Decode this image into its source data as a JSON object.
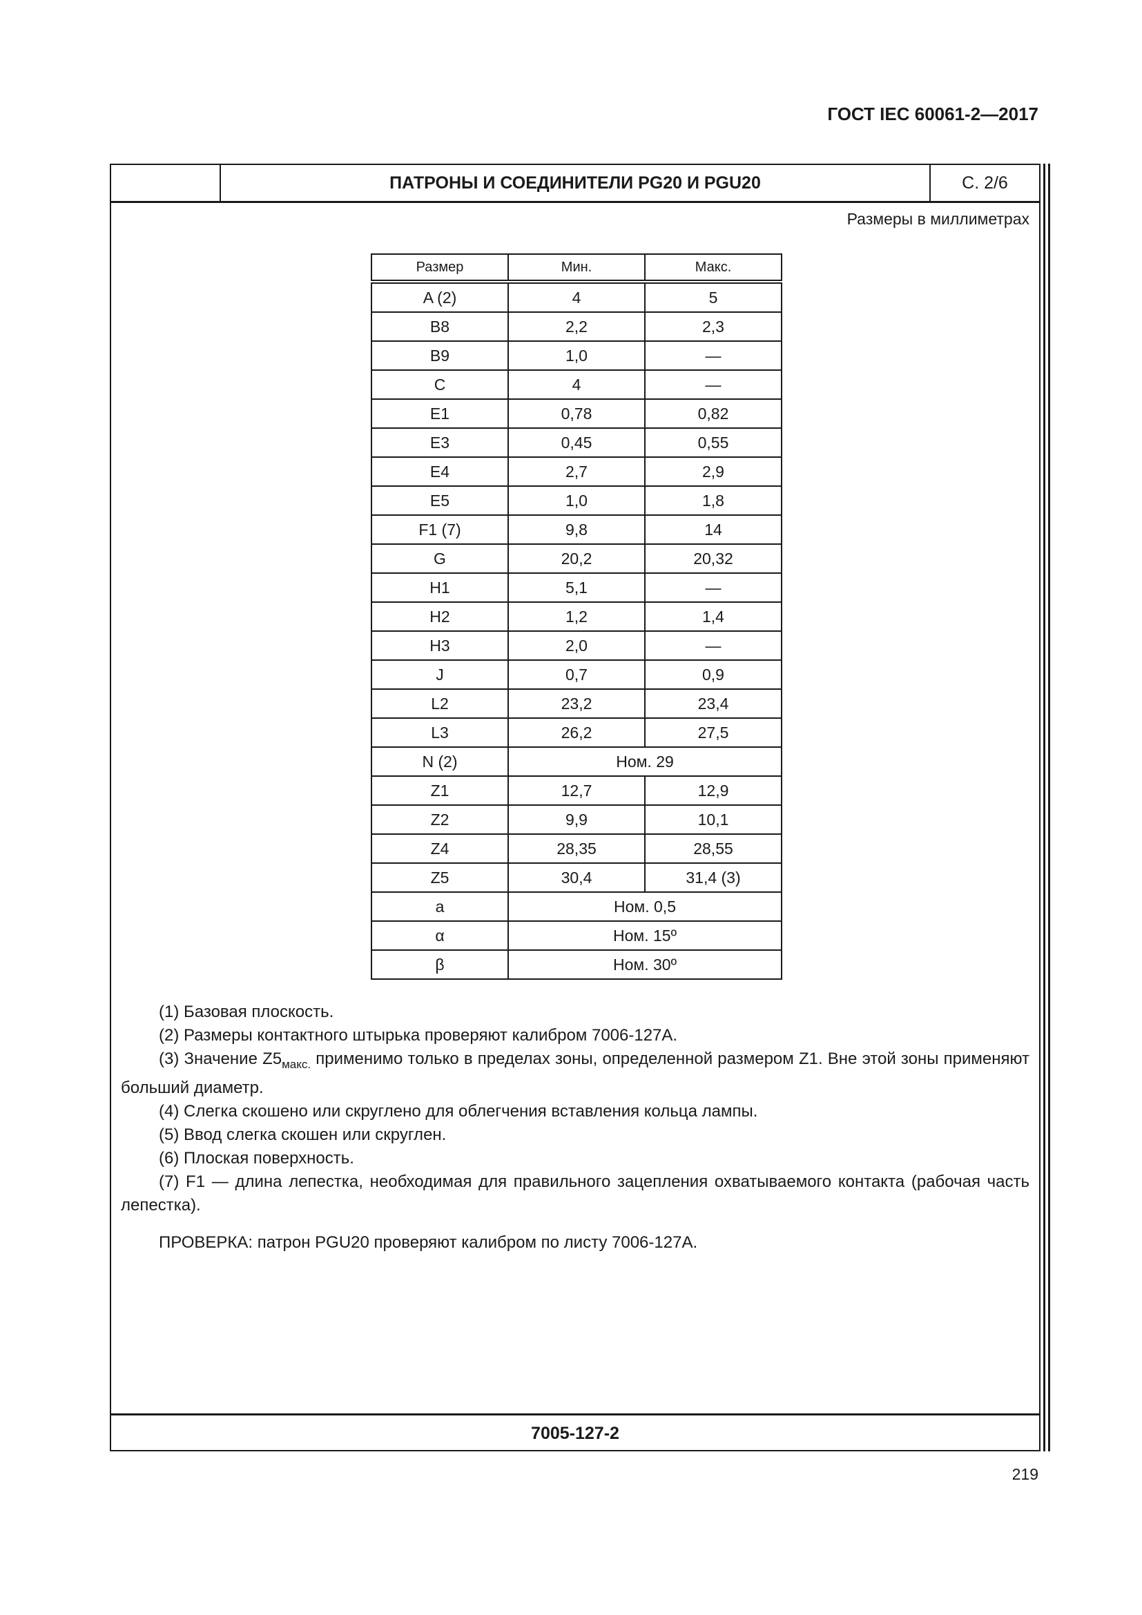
{
  "standard": "ГОСТ IEC 60061-2—2017",
  "header": {
    "title": "ПАТРОНЫ И СОЕДИНИТЕЛИ PG20 И PGU20",
    "sheet": "С. 2/6"
  },
  "units": "Размеры в миллиметрах",
  "table": {
    "columns": [
      "Размер",
      "Мин.",
      "Макс."
    ],
    "rows": [
      [
        "A (2)",
        "4",
        "5"
      ],
      [
        "B8",
        "2,2",
        "2,3"
      ],
      [
        "B9",
        "1,0",
        "—"
      ],
      [
        "C",
        "4",
        "—"
      ],
      [
        "E1",
        "0,78",
        "0,82"
      ],
      [
        "E3",
        "0,45",
        "0,55"
      ],
      [
        "E4",
        "2,7",
        "2,9"
      ],
      [
        "E5",
        "1,0",
        "1,8"
      ],
      [
        "F1 (7)",
        "9,8",
        "14"
      ],
      [
        "G",
        "20,2",
        "20,32"
      ],
      [
        "H1",
        "5,1",
        "—"
      ],
      [
        "H2",
        "1,2",
        "1,4"
      ],
      [
        "H3",
        "2,0",
        "—"
      ],
      [
        "J",
        "0,7",
        "0,9"
      ],
      [
        "L2",
        "23,2",
        "23,4"
      ],
      [
        "L3",
        "26,2",
        "27,5"
      ],
      [
        "N (2)",
        "Ном. 29"
      ],
      [
        "Z1",
        "12,7",
        "12,9"
      ],
      [
        "Z2",
        "9,9",
        "10,1"
      ],
      [
        "Z4",
        "28,35",
        "28,55"
      ],
      [
        "Z5",
        "30,4",
        "31,4 (3)"
      ],
      [
        "a",
        "Ном. 0,5"
      ],
      [
        "α",
        "Ном. 15º"
      ],
      [
        "β",
        "Ном. 30º"
      ]
    ]
  },
  "notes": {
    "n1": "(1) Базовая плоскость.",
    "n2": "(2) Размеры контактного штырька проверяют калибром 7006-127А.",
    "n3_pre": "(3) Значение Z5",
    "n3_sub": "макс.",
    "n3_post": " применимо только в пределах зоны, определенной размером Z1. Вне этой зоны применяют больший диаметр.",
    "n4": "(4) Слегка скошено или скруглено для облегчения вставления кольца лампы.",
    "n5": "(5) Ввод слегка скошен или скруглен.",
    "n6": "(6) Плоская поверхность.",
    "n7": "(7) F1 — длина лепестка, необходимая для правильного зацепления охватываемого контакта (рабочая часть лепестка).",
    "check": "ПРОВЕРКА: патрон PGU20 проверяют калибром по листу 7006-127А."
  },
  "footer": "7005-127-2",
  "page_number": "219"
}
